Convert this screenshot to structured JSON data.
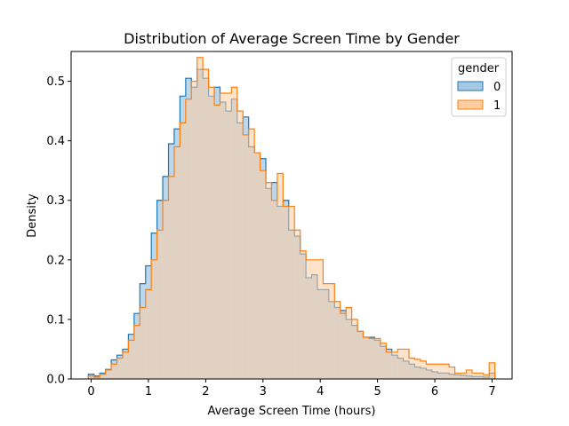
{
  "chart_data": {
    "type": "histogram",
    "title": "Distribution of Average Screen Time by Gender",
    "xlabel": "Average Screen Time (hours)",
    "ylabel": "Density",
    "xlim": [
      -0.35,
      7.35
    ],
    "ylim": [
      0,
      0.55
    ],
    "xticks": [
      0,
      1,
      2,
      3,
      4,
      5,
      6,
      7
    ],
    "yticks": [
      0.0,
      0.1,
      0.2,
      0.3,
      0.4,
      0.5
    ],
    "grid": false,
    "legend": {
      "title": "gender",
      "position": "top-right"
    },
    "bin_width": 0.1,
    "x": [
      0.0,
      0.1,
      0.2,
      0.3,
      0.4,
      0.5,
      0.6,
      0.7,
      0.8,
      0.9,
      1.0,
      1.1,
      1.2,
      1.3,
      1.4,
      1.5,
      1.6,
      1.7,
      1.8,
      1.9,
      2.0,
      2.1,
      2.2,
      2.3,
      2.4,
      2.5,
      2.6,
      2.7,
      2.8,
      2.9,
      3.0,
      3.1,
      3.2,
      3.3,
      3.4,
      3.5,
      3.6,
      3.7,
      3.8,
      3.9,
      4.0,
      4.1,
      4.2,
      4.3,
      4.4,
      4.5,
      4.6,
      4.7,
      4.8,
      4.9,
      5.0,
      5.1,
      5.2,
      5.3,
      5.4,
      5.5,
      5.6,
      5.7,
      5.8,
      5.9,
      6.0,
      6.1,
      6.2,
      6.3,
      6.4,
      6.5,
      6.6,
      6.7,
      6.8,
      6.9,
      7.0
    ],
    "series": [
      {
        "name": "0",
        "color": "#1f77b4",
        "fill": "#a6c8e3",
        "values": [
          0.008,
          0.005,
          0.01,
          0.016,
          0.032,
          0.04,
          0.05,
          0.075,
          0.11,
          0.16,
          0.19,
          0.245,
          0.3,
          0.34,
          0.395,
          0.42,
          0.475,
          0.505,
          0.49,
          0.52,
          0.505,
          0.475,
          0.49,
          0.465,
          0.45,
          0.47,
          0.43,
          0.44,
          0.39,
          0.38,
          0.37,
          0.32,
          0.33,
          0.29,
          0.3,
          0.25,
          0.24,
          0.21,
          0.17,
          0.175,
          0.15,
          0.15,
          0.13,
          0.12,
          0.115,
          0.1,
          0.09,
          0.08,
          0.07,
          0.07,
          0.065,
          0.055,
          0.05,
          0.04,
          0.035,
          0.03,
          0.025,
          0.02,
          0.018,
          0.015,
          0.012,
          0.01,
          0.01,
          0.008,
          0.007,
          0.006,
          0.005,
          0.004,
          0.004,
          0.003,
          0.01
        ]
      },
      {
        "name": "1",
        "color": "#ff7f0e",
        "fill": "#ffcda0",
        "values": [
          0.005,
          0.003,
          0.008,
          0.015,
          0.025,
          0.035,
          0.045,
          0.065,
          0.09,
          0.12,
          0.15,
          0.2,
          0.25,
          0.3,
          0.34,
          0.39,
          0.43,
          0.47,
          0.5,
          0.54,
          0.52,
          0.49,
          0.46,
          0.48,
          0.48,
          0.49,
          0.45,
          0.41,
          0.42,
          0.38,
          0.35,
          0.33,
          0.3,
          0.345,
          0.29,
          0.29,
          0.25,
          0.215,
          0.2,
          0.2,
          0.2,
          0.16,
          0.16,
          0.13,
          0.11,
          0.12,
          0.1,
          0.08,
          0.07,
          0.068,
          0.068,
          0.06,
          0.045,
          0.045,
          0.05,
          0.05,
          0.035,
          0.033,
          0.03,
          0.025,
          0.025,
          0.025,
          0.025,
          0.02,
          0.01,
          0.01,
          0.015,
          0.01,
          0.01,
          0.007,
          0.027
        ]
      }
    ]
  }
}
